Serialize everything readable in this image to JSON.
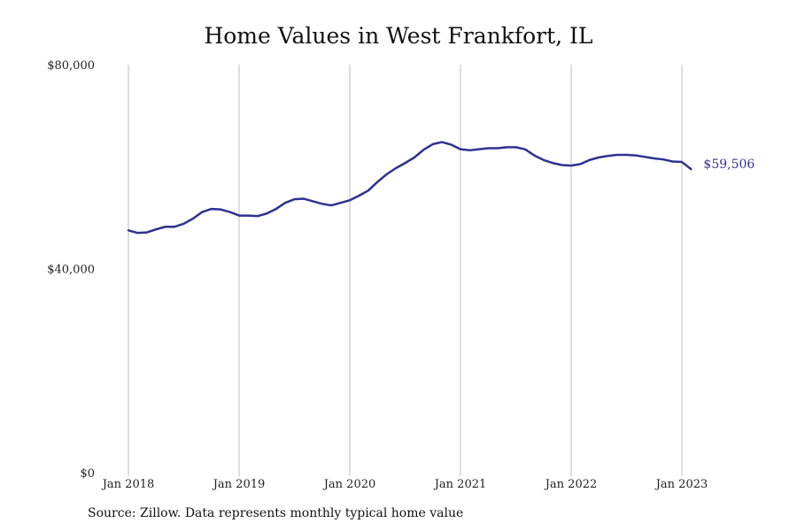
{
  "chart_data": {
    "type": "line",
    "title": "Home Values in West Frankfort, IL",
    "source": "Source: Zillow. Data represents monthly typical home value",
    "ylim": [
      0,
      80000
    ],
    "yticks": [
      0,
      40000,
      80000
    ],
    "ytick_labels": [
      "$0",
      "$40,000",
      "$80,000"
    ],
    "xticks": [
      "2018-01",
      "2019-01",
      "2020-01",
      "2021-01",
      "2022-01",
      "2023-01"
    ],
    "xtick_labels": [
      "Jan 2018",
      "Jan 2019",
      "Jan 2020",
      "Jan 2021",
      "Jan 2022",
      "Jan 2023"
    ],
    "grid": "vertical",
    "line_color": "#2e3192",
    "end_label": "$59,506",
    "series": [
      {
        "x": [
          "2018-01",
          "2018-02",
          "2018-03",
          "2018-04",
          "2018-05",
          "2018-06",
          "2018-07",
          "2018-08",
          "2018-09",
          "2018-10",
          "2018-11",
          "2018-12",
          "2019-01",
          "2019-02",
          "2019-03",
          "2019-04",
          "2019-05",
          "2019-06",
          "2019-07",
          "2019-08",
          "2019-09",
          "2019-10",
          "2019-11",
          "2019-12",
          "2020-01",
          "2020-02",
          "2020-03",
          "2020-04",
          "2020-05",
          "2020-06",
          "2020-07",
          "2020-08",
          "2020-09",
          "2020-10",
          "2020-11",
          "2020-12",
          "2021-01",
          "2021-02",
          "2021-03",
          "2021-04",
          "2021-05",
          "2021-06",
          "2021-07",
          "2021-08",
          "2021-09",
          "2021-10",
          "2021-11",
          "2021-12",
          "2022-01",
          "2022-02",
          "2022-03",
          "2022-04",
          "2022-05",
          "2022-06",
          "2022-07",
          "2022-08",
          "2022-09",
          "2022-10",
          "2022-11",
          "2022-12",
          "2023-01",
          "2023-02"
        ],
        "values": [
          47500,
          47000,
          47100,
          47700,
          48200,
          48200,
          48800,
          49800,
          51100,
          51700,
          51600,
          51100,
          50400,
          50400,
          50300,
          50800,
          51700,
          52900,
          53600,
          53700,
          53200,
          52700,
          52400,
          52900,
          53400,
          54300,
          55300,
          57000,
          58500,
          59700,
          60700,
          61800,
          63300,
          64400,
          64800,
          64300,
          63400,
          63200,
          63400,
          63600,
          63600,
          63800,
          63800,
          63400,
          62200,
          61300,
          60700,
          60300,
          60200,
          60500,
          61300,
          61800,
          62100,
          62300,
          62300,
          62200,
          61900,
          61600,
          61400,
          61000,
          60900,
          59506
        ]
      }
    ]
  }
}
